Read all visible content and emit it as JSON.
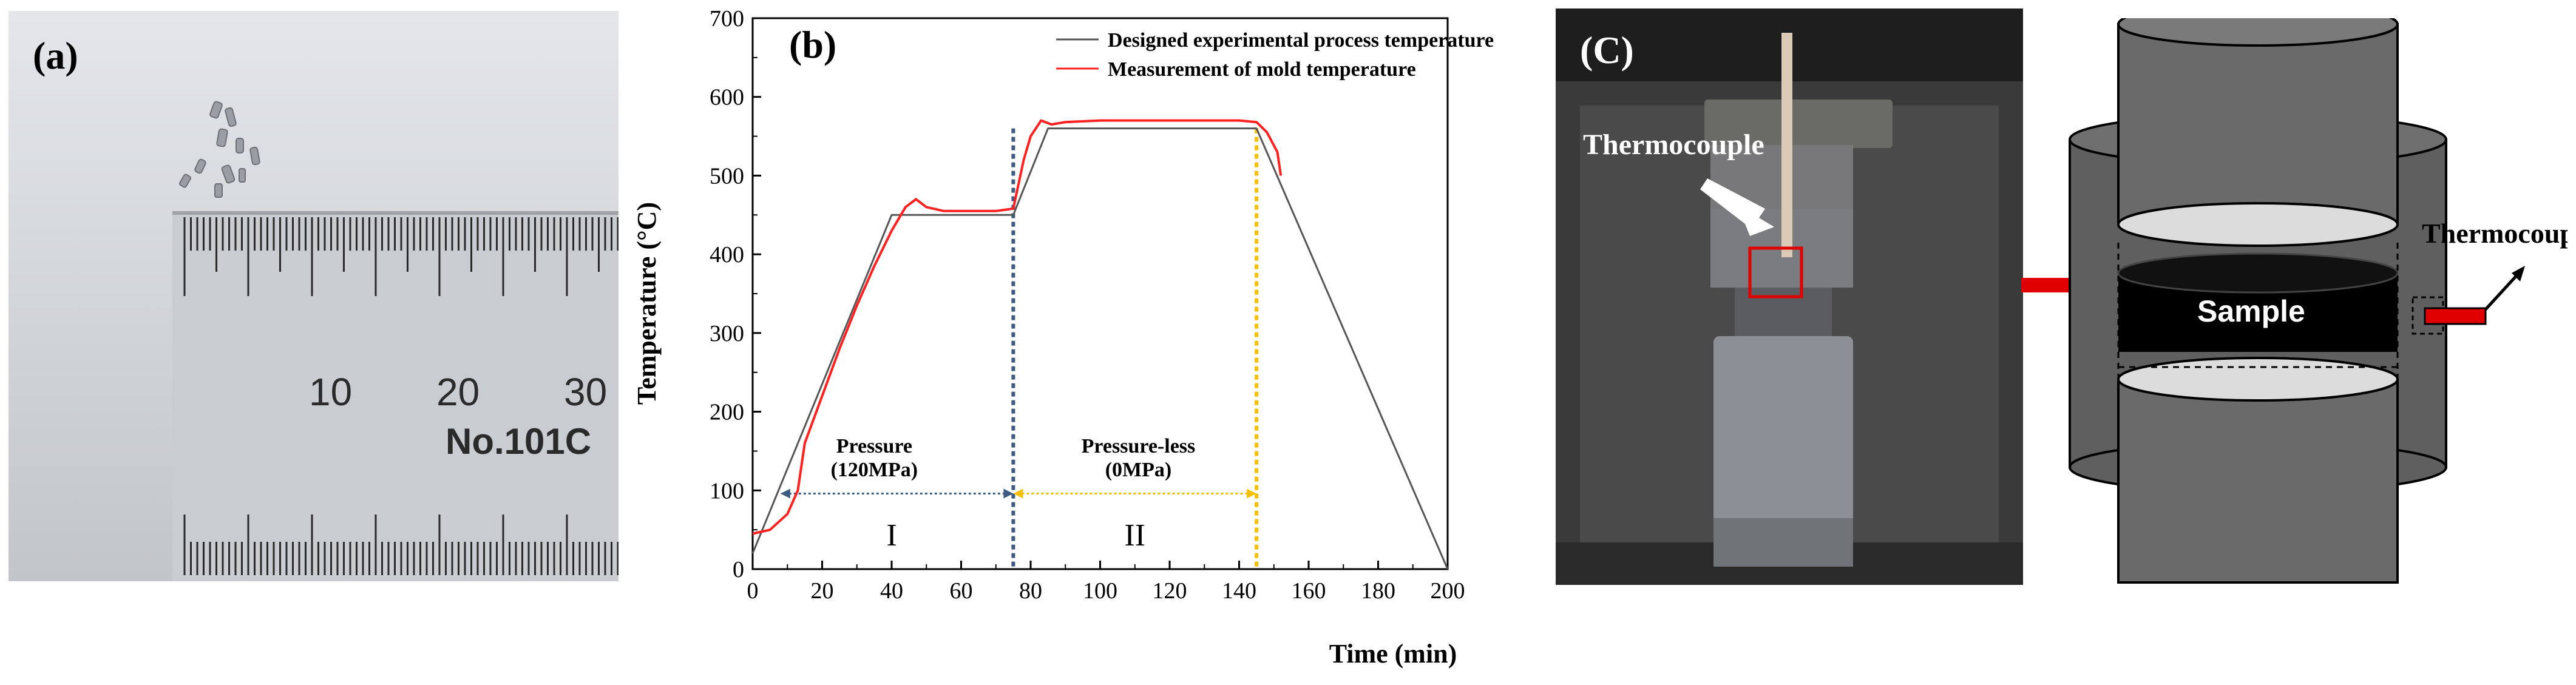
{
  "panels": {
    "a": {
      "label": "(a)",
      "ruler_numbers": [
        "10",
        "20",
        "30"
      ],
      "ruler_text": "No.101C"
    },
    "b": {
      "label": "(b)"
    },
    "c": {
      "label": "(C)",
      "thermocouple_label": "Thermocouple"
    },
    "d": {
      "thermocouple_label": "Thermocouple",
      "sample_label": "Sample"
    }
  },
  "colors": {
    "designed": "#555555",
    "measured": "#ff2020",
    "stage1": "#3d5a80",
    "stage2": "#f5c000",
    "arrow": "#e00000"
  },
  "chart_data": {
    "type": "line",
    "title": "",
    "xlabel": "Time (min)",
    "ylabel": "Temperature (°C)",
    "xlim": [
      0,
      200
    ],
    "ylim": [
      0,
      700
    ],
    "xticks": [
      0,
      20,
      40,
      60,
      80,
      100,
      120,
      140,
      160,
      180,
      200
    ],
    "yticks": [
      0,
      100,
      200,
      300,
      400,
      500,
      600,
      700
    ],
    "legend_position": "top-right",
    "series": [
      {
        "name": "Designed experimental process temperature",
        "color": "#555555",
        "x": [
          0,
          40,
          75,
          85,
          145,
          200
        ],
        "y": [
          20,
          450,
          450,
          560,
          560,
          0
        ]
      },
      {
        "name": "Measurement of mold temperature",
        "color": "#ff2020",
        "x": [
          0,
          5,
          10,
          13,
          15,
          20,
          25,
          30,
          35,
          40,
          44,
          47,
          50,
          55,
          60,
          65,
          70,
          75,
          78,
          80,
          83,
          86,
          90,
          100,
          110,
          120,
          130,
          140,
          145,
          148,
          151,
          152
        ],
        "y": [
          45,
          50,
          70,
          100,
          160,
          220,
          280,
          335,
          385,
          430,
          460,
          470,
          460,
          455,
          455,
          455,
          455,
          458,
          520,
          550,
          570,
          565,
          568,
          570,
          570,
          570,
          570,
          570,
          568,
          555,
          530,
          500
        ]
      }
    ],
    "annotations": [
      {
        "text": "Pressure",
        "x": 35,
        "y": 148
      },
      {
        "text": "(120MPa)",
        "x": 35,
        "y": 118
      },
      {
        "text": "Pressure-less",
        "x": 111,
        "y": 148
      },
      {
        "text": "(0MPa)",
        "x": 111,
        "y": 118
      },
      {
        "text": "I",
        "x": 40,
        "y": 30
      },
      {
        "text": "II",
        "x": 110,
        "y": 30
      }
    ],
    "stages": [
      {
        "name": "I",
        "x_start": 8,
        "x_end": 75,
        "y": 96,
        "color": "#3d5a80"
      },
      {
        "name": "II",
        "x_start": 75,
        "x_end": 145,
        "y": 96,
        "color": "#f5c000"
      }
    ],
    "vlines": [
      {
        "x": 75,
        "color": "#3d5a80"
      },
      {
        "x": 145,
        "color": "#f5c000"
      }
    ]
  }
}
